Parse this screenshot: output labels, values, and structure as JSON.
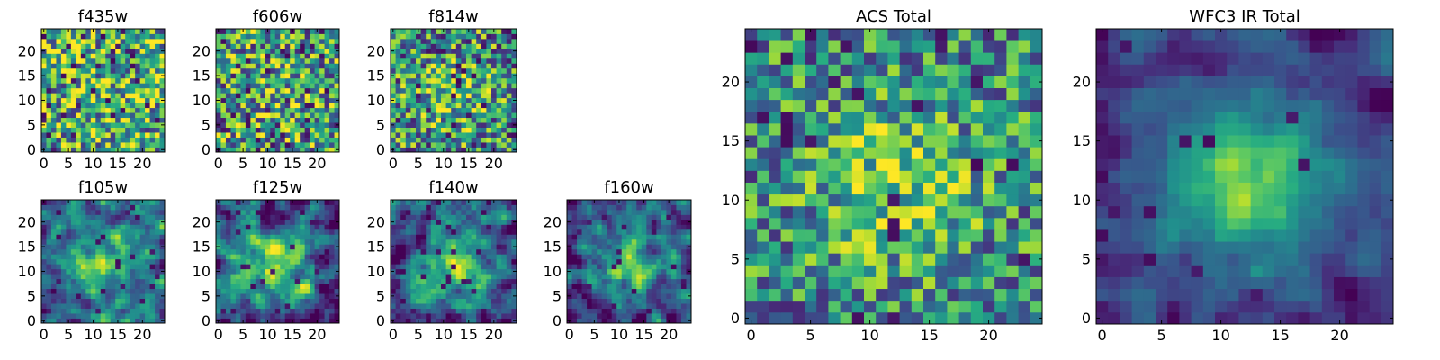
{
  "chart_data": [
    {
      "type": "heatmap",
      "title": "f435w",
      "grid_size": 25,
      "xticks": [
        "0",
        "5",
        "10",
        "15",
        "20"
      ],
      "yticks": [
        "0",
        "5",
        "10",
        "15",
        "20"
      ],
      "colormap": "viridis",
      "seed": 11,
      "noise": 0.95,
      "peak": 0.05,
      "speckle": 0.06,
      "smooth": 0,
      "base": 0.64
    },
    {
      "type": "heatmap",
      "title": "f606w",
      "grid_size": 25,
      "xticks": [
        "0",
        "5",
        "10",
        "15",
        "20"
      ],
      "yticks": [
        "0",
        "5",
        "10",
        "15",
        "20"
      ],
      "colormap": "viridis",
      "seed": 23,
      "noise": 0.95,
      "peak": 0.08,
      "speckle": 0.06,
      "smooth": 0,
      "base": 0.6
    },
    {
      "type": "heatmap",
      "title": "f814w",
      "grid_size": 25,
      "xticks": [
        "0",
        "5",
        "10",
        "15",
        "20"
      ],
      "yticks": [
        "0",
        "5",
        "10",
        "15",
        "20"
      ],
      "colormap": "viridis",
      "seed": 37,
      "noise": 0.9,
      "peak": 0.22,
      "speckle": 0.05,
      "smooth": 0,
      "base": 0.58
    },
    {
      "type": "heatmap",
      "title": "f105w",
      "grid_size": 25,
      "xticks": [
        "0",
        "5",
        "10",
        "15",
        "20"
      ],
      "yticks": [
        "0",
        "5",
        "10",
        "15",
        "20"
      ],
      "colormap": "viridis",
      "seed": 41,
      "noise": 0.7,
      "peak": 0.45,
      "speckle": 0.03,
      "smooth": 1,
      "base": 0.48
    },
    {
      "type": "heatmap",
      "title": "f125w",
      "grid_size": 25,
      "xticks": [
        "0",
        "5",
        "10",
        "15",
        "20"
      ],
      "yticks": [
        "0",
        "5",
        "10",
        "15",
        "20"
      ],
      "colormap": "viridis",
      "seed": 53,
      "noise": 0.75,
      "peak": 0.5,
      "speckle": 0.05,
      "smooth": 1,
      "base": 0.46
    },
    {
      "type": "heatmap",
      "title": "f140w",
      "grid_size": 25,
      "xticks": [
        "0",
        "5",
        "10",
        "15",
        "20"
      ],
      "yticks": [
        "0",
        "5",
        "10",
        "15",
        "20"
      ],
      "colormap": "viridis",
      "seed": 67,
      "noise": 0.7,
      "peak": 0.5,
      "speckle": 0.03,
      "smooth": 1,
      "base": 0.45
    },
    {
      "type": "heatmap",
      "title": "f160w",
      "grid_size": 25,
      "xticks": [
        "0",
        "5",
        "10",
        "15",
        "20"
      ],
      "yticks": [
        "0",
        "5",
        "10",
        "15",
        "20"
      ],
      "colormap": "viridis",
      "seed": 79,
      "noise": 0.7,
      "peak": 0.55,
      "speckle": 0.04,
      "smooth": 1,
      "base": 0.42
    },
    {
      "type": "heatmap",
      "title": "ACS Total",
      "grid_size": 25,
      "xticks": [
        "0",
        "5",
        "10",
        "15",
        "20"
      ],
      "yticks": [
        "0",
        "5",
        "10",
        "15",
        "20"
      ],
      "colormap": "viridis",
      "seed": 97,
      "noise": 0.75,
      "peak": 0.3,
      "speckle": 0.04,
      "smooth": 0,
      "base": 0.58
    },
    {
      "type": "heatmap",
      "title": "WFC3 IR Total",
      "grid_size": 25,
      "xticks": [
        "0",
        "5",
        "10",
        "15",
        "20"
      ],
      "yticks": [
        "0",
        "5",
        "10",
        "15",
        "20"
      ],
      "colormap": "viridis",
      "seed": 113,
      "noise": 0.35,
      "peak": 0.6,
      "speckle": 0.03,
      "smooth": 1,
      "base": 0.38
    }
  ]
}
